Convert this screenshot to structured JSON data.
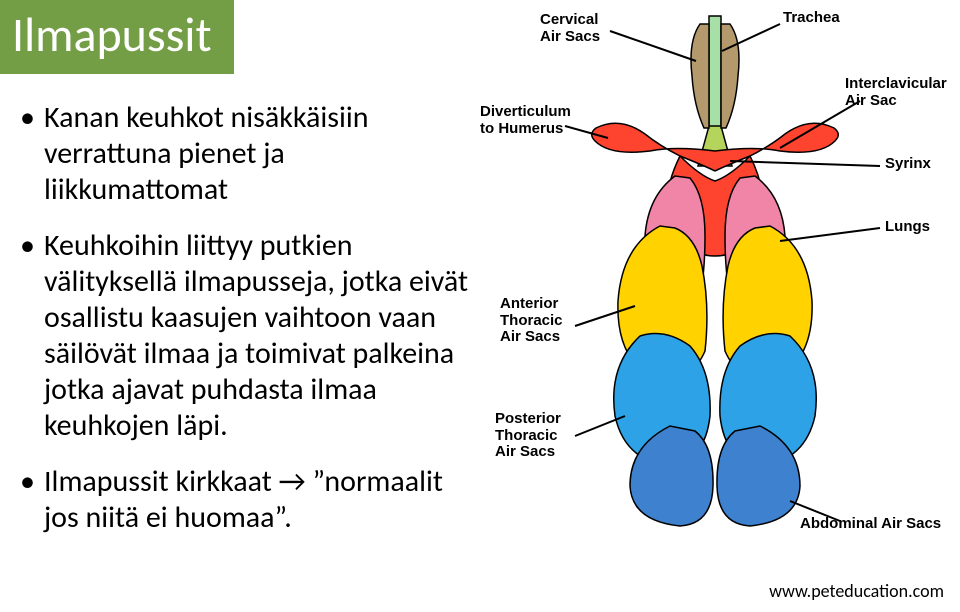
{
  "title": {
    "text": "Ilmapussit",
    "bg_color": "#739e46",
    "text_color": "#ffffff"
  },
  "colors": {
    "trachea": "#a6e0a6",
    "cervical": "#b3996b",
    "interclavicular": "#fe432e",
    "syrinx": "#b4d45c",
    "lungs": "#f085a8",
    "anterior": "#ffd200",
    "posterior": "#2ea2e6",
    "abdominal": "#3e81cf",
    "outline": "#000000",
    "pointer": "#000000"
  },
  "labels": {
    "cervical": "Cervical\nAir Sacs",
    "trachea": "Trachea",
    "diverticulum": "Diverticulum\nto Humerus",
    "interclavicular": "Interclavicular\nAir Sac",
    "syrinx": "Syrinx",
    "lungs": "Lungs",
    "anterior": "Anterior\nThoracic\nAir Sacs",
    "posterior": "Posterior\nThoracic\nAir Sacs",
    "abdominal": "Abdominal Air Sacs"
  },
  "bullets": [
    "Kanan keuhkot nisäkkäisiin verrattuna pienet ja liikkumattomat",
    "Keuhkoihin liittyy putkien välityksellä ilmapusseja, jotka eivät osallistu kaasujen vaihtoon vaan säilövät ilmaa ja toimivat palkeina jotka ajavat puhdasta ilmaa keuhkojen läpi.",
    "Ilmapussit kirkkaat → ”normaalit jos niitä ei huomaa”."
  ],
  "credit": "www.peteducation.com"
}
